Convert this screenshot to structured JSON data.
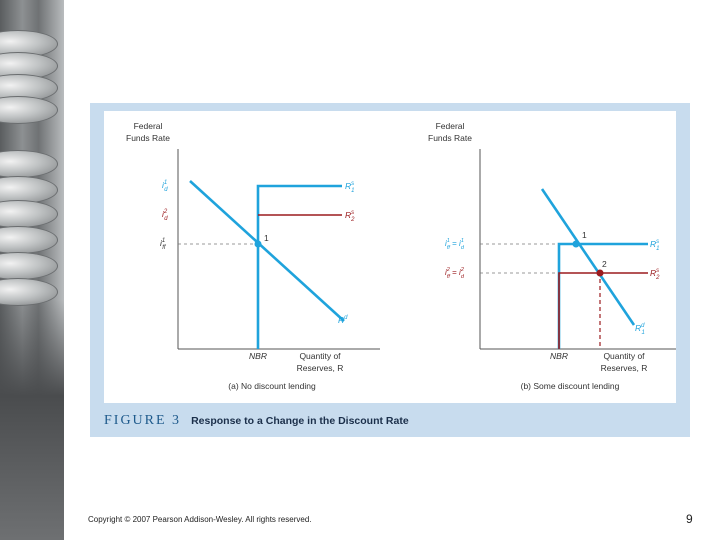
{
  "figure": {
    "number_label": "FIGURE 3",
    "title": "Response to a Change in the Discount Rate"
  },
  "panel_a": {
    "y_axis_label_line1": "Federal",
    "y_axis_label_line2": "Funds Rate",
    "x_axis_label_line1": "Quantity of",
    "x_axis_label_line2": "Reserves, R",
    "nbr_label": "NBR",
    "tick_id1": "i",
    "tick_id1_sub": "d",
    "tick_id1_sup": "1",
    "tick_id2": "i",
    "tick_id2_sub": "d",
    "tick_id2_sup": "2",
    "tick_iff1": "i",
    "tick_iff1_sub": "ff",
    "tick_iff1_sup": "1",
    "supply1_label": "R",
    "supply1_sup": "s",
    "supply1_sub": "1",
    "supply2_label": "R",
    "supply2_sup": "s",
    "supply2_sub": "2",
    "demand_label": "R",
    "demand_sup": "d",
    "point_label": "1",
    "caption": "(a) No discount lending"
  },
  "panel_b": {
    "y_axis_label_line1": "Federal",
    "y_axis_label_line2": "Funds Rate",
    "x_axis_label_line1": "Quantity of",
    "x_axis_label_line2": "Reserves, R",
    "nbr_label": "NBR",
    "tick1_left": "i",
    "tick1_left_sub": "ff",
    "tick1_left_sup": "1",
    "tick1_eq": " = ",
    "tick1_right": "i",
    "tick1_right_sub": "d",
    "tick1_right_sup": "1",
    "tick2_left": "i",
    "tick2_left_sub": "ff",
    "tick2_left_sup": "2",
    "tick2_eq": " = ",
    "tick2_right": "i",
    "tick2_right_sub": "d",
    "tick2_right_sup": "2",
    "supply1_label": "R",
    "supply1_sup": "s",
    "supply1_sub": "1",
    "supply2_label": "R",
    "supply2_sup": "s",
    "supply2_sub": "2",
    "demand_label": "R",
    "demand_sup": "d",
    "demand_sub": "1",
    "point1_label": "1",
    "point2_label": "2",
    "caption": "(b) Some discount lending"
  },
  "colors": {
    "blue_curve": "#1fa3dc",
    "red_curve": "#9b1b1e",
    "panel_bg": "#c8dcee",
    "caption_blue": "#1e5a8c"
  },
  "footer": {
    "copyright": "Copyright © 2007 Pearson Addison-Wesley. All rights reserved.",
    "page_number": "9"
  }
}
